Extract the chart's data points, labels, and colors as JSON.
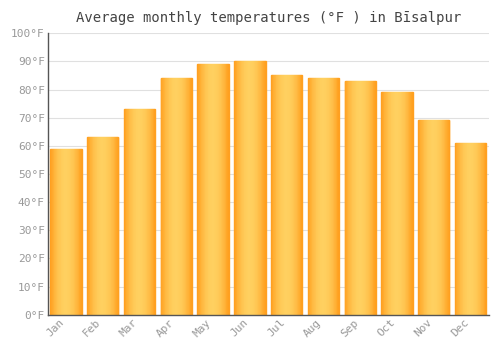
{
  "title": "Average monthly temperatures (°F ) in Bīsalpur",
  "months": [
    "Jan",
    "Feb",
    "Mar",
    "Apr",
    "May",
    "Jun",
    "Jul",
    "Aug",
    "Sep",
    "Oct",
    "Nov",
    "Dec"
  ],
  "values": [
    59,
    63,
    73,
    84,
    89,
    90,
    85,
    84,
    83,
    79,
    69,
    61
  ],
  "bar_color_center": "#FFD060",
  "bar_color_edge": "#FFA020",
  "yticks": [
    0,
    10,
    20,
    30,
    40,
    50,
    60,
    70,
    80,
    90,
    100
  ],
  "ylim": [
    0,
    100
  ],
  "background_color": "#ffffff",
  "grid_color": "#e0e0e0",
  "title_fontsize": 10,
  "tick_fontsize": 8,
  "tick_color": "#999999",
  "spine_color": "#555555"
}
